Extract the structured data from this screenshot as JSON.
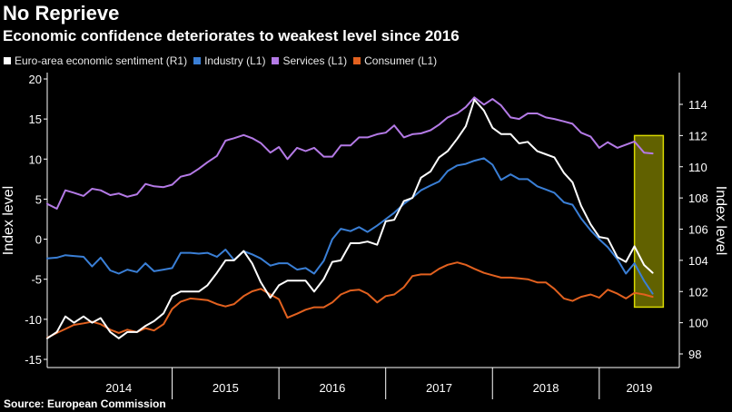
{
  "title": "No Reprieve",
  "subtitle": "Economic confidence deteriorates to weakest level since 2016",
  "source": "Source: European Commission",
  "colors": {
    "sentiment": "#ffffff",
    "industry": "#3a7fd6",
    "services": "#b47ae6",
    "consumer": "#e2611f",
    "highlight": "#d8d800",
    "projection": "#e6e65a"
  },
  "legend": [
    {
      "label": "Euro-area economic sentiment (R1)",
      "color": "#ffffff"
    },
    {
      "label": "Industry (L1)",
      "color": "#3a7fd6"
    },
    {
      "label": "Services (L1)",
      "color": "#b47ae6"
    },
    {
      "label": "Consumer (L1)",
      "color": "#e2611f"
    }
  ],
  "chart_data": {
    "type": "line",
    "title": "No Reprieve",
    "subtitle": "Economic confidence deteriorates to weakest level since 2016",
    "ylabel_left": "Index level",
    "ylabel_right": "Index level",
    "ylim_left": [
      -16,
      20
    ],
    "ylim_right": [
      97.5,
      115.5
    ],
    "left_ticks": [
      "20",
      "15",
      "10",
      "5",
      "0",
      "-5",
      "-10",
      "-15"
    ],
    "left_tick_values": [
      20,
      15,
      10,
      5,
      0,
      -5,
      -10,
      -15
    ],
    "right_ticks": [
      "114",
      "112",
      "110",
      "108",
      "106",
      "104",
      "102",
      "100",
      "98"
    ],
    "right_tick_values": [
      114,
      112,
      110,
      108,
      106,
      104,
      102,
      100,
      98
    ],
    "x_range": [
      2013.83,
      2019.75
    ],
    "year_labels": [
      "2014",
      "2015",
      "2016",
      "2017",
      "2018",
      "2019"
    ],
    "year_positions": [
      2014.5,
      2015.5,
      2016.5,
      2017.5,
      2018.5,
      2019.375
    ],
    "year_boundaries": [
      2015,
      2016,
      2017,
      2018,
      2019
    ],
    "highlight_range": {
      "x_start": 2019.33,
      "x_end": 2019.6,
      "y_right_start": 101,
      "y_right_end": 112
    },
    "x": [
      2013.83,
      2013.92,
      2014.0,
      2014.08,
      2014.17,
      2014.25,
      2014.33,
      2014.42,
      2014.5,
      2014.58,
      2014.67,
      2014.75,
      2014.83,
      2014.92,
      2015.0,
      2015.08,
      2015.17,
      2015.25,
      2015.33,
      2015.42,
      2015.5,
      2015.58,
      2015.67,
      2015.75,
      2015.83,
      2015.92,
      2016.0,
      2016.08,
      2016.17,
      2016.25,
      2016.33,
      2016.42,
      2016.5,
      2016.58,
      2016.67,
      2016.75,
      2016.83,
      2016.92,
      2017.0,
      2017.08,
      2017.17,
      2017.25,
      2017.33,
      2017.42,
      2017.5,
      2017.58,
      2017.67,
      2017.75,
      2017.83,
      2017.92,
      2018.0,
      2018.08,
      2018.17,
      2018.25,
      2018.33,
      2018.42,
      2018.5,
      2018.58,
      2018.67,
      2018.75,
      2018.83,
      2018.92,
      2019.0,
      2019.08,
      2019.17,
      2019.25,
      2019.33,
      2019.42,
      2019.5
    ],
    "series": [
      {
        "name": "Euro-area economic sentiment (R1)",
        "axis": "right",
        "values": [
          99,
          99.4,
          100.4,
          100,
          100.4,
          100,
          100.3,
          99.4,
          99,
          99.4,
          99.4,
          99.8,
          100.1,
          100.6,
          101.7,
          102,
          102,
          102,
          102.4,
          103.2,
          104,
          104,
          104.6,
          103.8,
          102.6,
          101.6,
          102.4,
          102.7,
          102.7,
          102.7,
          102,
          102.8,
          103.9,
          104,
          105.1,
          105.1,
          105.2,
          105,
          106.5,
          106.6,
          107.8,
          108,
          109.3,
          109.7,
          110.6,
          111,
          111.8,
          112.6,
          114.3,
          113.6,
          112.5,
          112.1,
          112.1,
          111.5,
          111.6,
          111,
          110.8,
          110.6,
          109.6,
          109,
          107.5,
          106.3,
          105.5,
          105.4,
          104.2,
          103.9,
          104.9,
          103.7,
          103.2
        ]
      },
      {
        "name": "Industry (L1)",
        "axis": "left",
        "values": [
          -2.4,
          -2.3,
          -2,
          -2.1,
          -2.2,
          -3.4,
          -2.3,
          -3.9,
          -4.3,
          -3.8,
          -4.1,
          -3,
          -4,
          -3.8,
          -3.6,
          -1.7,
          -1.7,
          -1.8,
          -1.7,
          -2.2,
          -1.3,
          -2.6,
          -1.5,
          -1.9,
          -2.4,
          -3.3,
          -3,
          -3,
          -3.8,
          -3.6,
          -4.3,
          -2.7,
          0,
          1.3,
          1,
          1.5,
          0.9,
          1.7,
          2.5,
          3.3,
          4.4,
          5.2,
          6.1,
          6.7,
          7.2,
          8.5,
          9.2,
          9.4,
          9.8,
          10.1,
          9.3,
          7.4,
          8.1,
          7.5,
          7.5,
          6.6,
          6.2,
          5.8,
          4.6,
          4.3,
          2.6,
          1.1,
          0,
          -1,
          -2.5,
          -4.3,
          -3,
          -5.2,
          -6.8
        ]
      },
      {
        "name": "Services (L1)",
        "axis": "left",
        "values": [
          4.4,
          3.8,
          6.1,
          5.8,
          5.4,
          6.3,
          6.1,
          5.5,
          5.7,
          5.3,
          5.6,
          6.9,
          6.6,
          6.5,
          6.8,
          7.8,
          8.1,
          8.8,
          9.6,
          10.4,
          12.3,
          12.6,
          13,
          12.6,
          12,
          10.8,
          11.5,
          10,
          11.4,
          11,
          11.4,
          10.3,
          10.3,
          11.7,
          11.7,
          12.7,
          12.7,
          13.1,
          13.3,
          14.2,
          12.7,
          13.1,
          13.2,
          13.6,
          14.3,
          15.2,
          15.7,
          16.5,
          17.7,
          16.8,
          17.5,
          16.7,
          15.2,
          15,
          15.7,
          15.7,
          15.2,
          15,
          14.7,
          14.4,
          13.3,
          12.8,
          11.4,
          12.1,
          11.4,
          11.8,
          12.2,
          10.8,
          10.7
        ]
      },
      {
        "name": "Consumer (L1)",
        "axis": "left",
        "values": [
          -12.3,
          -11.7,
          -11.2,
          -10.7,
          -10.5,
          -10.3,
          -10.6,
          -11.3,
          -11.7,
          -11.3,
          -11.6,
          -11.1,
          -11.4,
          -10.6,
          -8.7,
          -7.8,
          -7.4,
          -7.5,
          -7.6,
          -8.1,
          -8.4,
          -8.1,
          -7.1,
          -6.5,
          -6.2,
          -6.9,
          -7.5,
          -9.8,
          -9.3,
          -8.8,
          -8.5,
          -8.5,
          -7.9,
          -6.9,
          -6.4,
          -6.3,
          -6.8,
          -7.9,
          -7.1,
          -6.9,
          -6,
          -4.6,
          -4.4,
          -4.4,
          -3.7,
          -3.2,
          -2.9,
          -3.2,
          -3.7,
          -4.2,
          -4.5,
          -4.8,
          -4.8,
          -4.9,
          -5,
          -5.4,
          -5.4,
          -6.2,
          -7.4,
          -7.7,
          -7.2,
          -6.9,
          -7.3,
          -6.3,
          -6.8,
          -7.4,
          -6.7,
          -6.9,
          -7.2
        ]
      }
    ]
  }
}
